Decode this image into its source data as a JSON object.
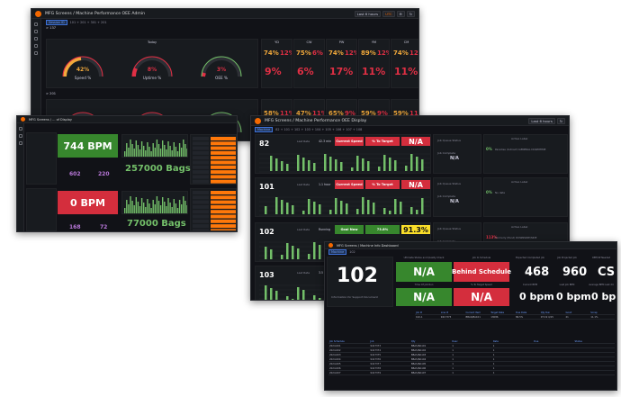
{
  "w1": {
    "breadcrumb": "MFG Screens / Machine Performance OEE Admin",
    "time_label": "Last 6 hours",
    "tz": "UTC",
    "var_chip": "Session ID",
    "var_values": "101 + 201 + 301 + 201",
    "row1_label": "> 137",
    "row2_label": "> 201",
    "center_title": "Today",
    "gauges": [
      {
        "value": "42%",
        "label": "Speed %",
        "color": "#f2a93b"
      },
      {
        "value": "8%",
        "label": "Uptime %",
        "color": "#e02f44"
      },
      {
        "value": "3%",
        "label": "OEE %",
        "color": "#e02f44"
      }
    ],
    "gauges2": [
      "0%",
      "0%",
      "0%"
    ],
    "cols": [
      "YD",
      "CW",
      "PW",
      "YM",
      "CM"
    ],
    "row1_stats": [
      [
        "74%",
        "12%",
        "75%",
        "6%",
        "74%",
        "12%",
        "89%",
        "12%",
        "74%",
        "12%"
      ],
      [
        "9%",
        "6%",
        "17%",
        "11%",
        "11%"
      ]
    ],
    "row2_stats": [
      [
        "58%",
        "11%",
        "47%",
        "11%",
        "65%",
        "9%",
        "59%",
        "9%",
        "59%",
        "11%"
      ]
    ]
  },
  "w2": {
    "breadcrumb": "MFG Screens / ... of Display",
    "bpm1": "744 BPM",
    "bags1": "257000 Bags",
    "bpm2": "0 BPM",
    "bags2": "77000 Bags",
    "side_vals1": [
      "602",
      "220"
    ],
    "side_vals2": [
      "168",
      "72"
    ]
  },
  "w3": {
    "breadcrumb": "MFG Screens / Machine Performance OEE Display",
    "time_label": "Last 6 hours",
    "lines": [
      {
        "id": "82",
        "last_rate": "42.3 min",
        "status": "Current Speed",
        "pct": "% To Target",
        "na": "N/A",
        "na2": "N/A",
        "pct2": "0%",
        "label": "Paradise (Indirect) GENERAL DOWNTIME"
      },
      {
        "id": "101",
        "last_rate": "1.1 hour",
        "status": "Current Speed",
        "pct": "% To Target",
        "na": "N/A",
        "na2": "N/A",
        "pct2": "0%",
        "label": "No data"
      },
      {
        "id": "102",
        "last_rate": "Running",
        "status": "Goal Now",
        "pct": "73.8%",
        "na": "91.3%",
        "na2": "N/A",
        "pct2": "113%",
        "label": "Formerly (Pond) DOWNSIDE/SIDE"
      },
      {
        "id": "103",
        "last_rate": "3.5 day",
        "status": "",
        "pct": "",
        "na": "",
        "na2": "",
        "pct2": "",
        "label": ""
      }
    ],
    "small_labels": [
      "Last Rate",
      "Oil Rule Started",
      "Time Left",
      "Job Queue Status",
      "Job Complete",
      "Active Label"
    ]
  },
  "w4": {
    "breadcrumb": "MFG Screens / Machine Info Dashboard",
    "big_id": "102",
    "top_titles": [
      "Ultimate Status and Quality Check",
      "Job to Schedule",
      "Expected Completed Job",
      "Job Projected Job",
      "OEE/SP Needed"
    ],
    "na1": "N/A",
    "behind": "Behind Schedule",
    "n468": "468",
    "n960": "960",
    "cs": "CS",
    "na2": "N/A",
    "na3": "N/A",
    "bpm_a": "0 bpm",
    "bpm_b": "0 bpm",
    "bpm_c": "0 bpm",
    "mid_titles": [
      "Time Of Job Run",
      "% To Target Speed",
      "Current BPM",
      "Last Job BPM",
      "Average BPM Last 24"
    ],
    "left_note": "Information for Support Document",
    "table1_headers": [
      "Job #",
      "Line #",
      "Current Item",
      "Target Rate",
      "Due Date",
      "Qty Run",
      "Good",
      "Scrap"
    ],
    "table1_rows": [
      [
        "102-1",
        "9417373",
        "BBAS/BA101",
        "13086",
        "86.5%",
        "07:19 4/15",
        "21",
        "11.1%"
      ]
    ],
    "table2_headers": [
      "Job Schedule",
      "Job",
      "Qty",
      "Desc",
      "Date",
      "Due",
      "Status"
    ],
    "table2_rows": [
      [
        "2024-001",
        "9417373",
        "BBAS/BA101",
        "1",
        "1",
        "",
        ""
      ],
      [
        "2024-002",
        "9417374",
        "BBAS/BA102",
        "1",
        "1",
        "",
        ""
      ],
      [
        "2024-003",
        "9417375",
        "BBAS/BA103",
        "1",
        "1",
        "",
        ""
      ],
      [
        "2024-004",
        "9417376",
        "BBAS/BA104",
        "1",
        "1",
        "",
        ""
      ],
      [
        "2024-005",
        "9417377",
        "BBAS/BA105",
        "1",
        "1",
        "",
        ""
      ],
      [
        "2024-006",
        "9417378",
        "BBAS/BA106",
        "1",
        "1",
        "",
        ""
      ],
      [
        "2024-007",
        "9417379",
        "BBAS/BA107",
        "1",
        "1",
        "",
        ""
      ]
    ]
  }
}
